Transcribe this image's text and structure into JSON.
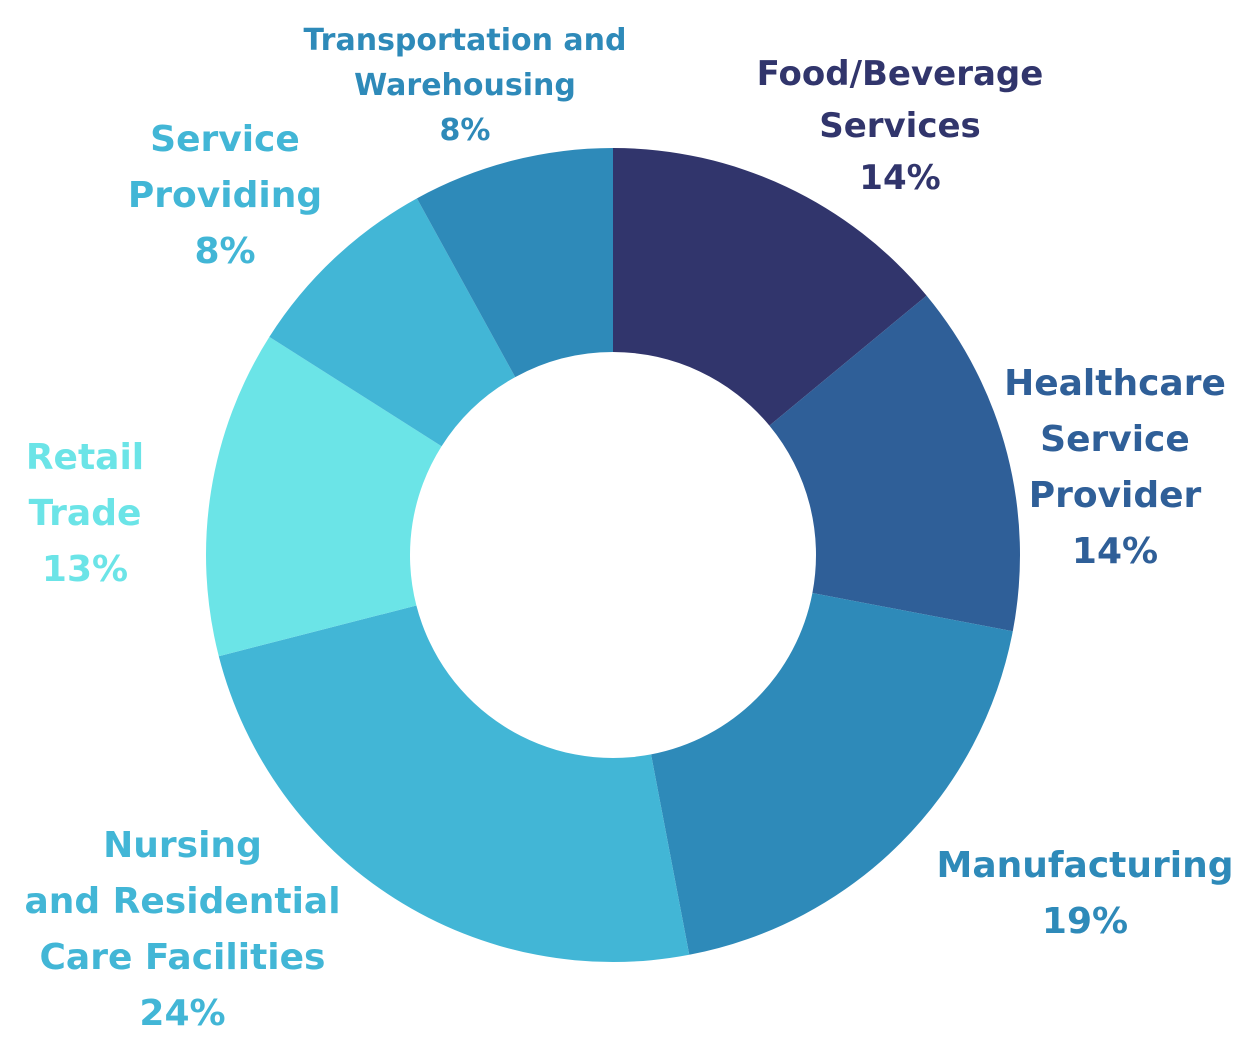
{
  "chart_data": {
    "type": "pie",
    "donut": true,
    "legend": "none",
    "slices": [
      {
        "label_lines": [
          "Food/Beverage",
          "Services"
        ],
        "value": 14,
        "value_label": "14%",
        "color": "#31356c"
      },
      {
        "label_lines": [
          "Healthcare",
          "Service",
          "Provider"
        ],
        "value": 14,
        "value_label": "14%",
        "color": "#2f5f98"
      },
      {
        "label_lines": [
          "Manufacturing"
        ],
        "value": 19,
        "value_label": "19%",
        "color": "#2e8ab9"
      },
      {
        "label_lines": [
          "Nursing",
          "and Residential",
          "Care Facilities"
        ],
        "value": 24,
        "value_label": "24%",
        "color": "#42b6d6"
      },
      {
        "label_lines": [
          "Retail",
          "Trade"
        ],
        "value": 13,
        "value_label": "13%",
        "color": "#6be4e7"
      },
      {
        "label_lines": [
          "Service",
          "Providing"
        ],
        "value": 8,
        "value_label": "8%",
        "color": "#42b6d6"
      },
      {
        "label_lines": [
          "Transportation and",
          "Warehousing"
        ],
        "value": 8,
        "value_label": "8%",
        "color": "#2e8ab9"
      }
    ],
    "label_colors": [
      "#31356c",
      "#2f5f98",
      "#2e8ab9",
      "#42b6d6",
      "#6be4e7",
      "#42b6d6",
      "#2e8ab9"
    ]
  }
}
